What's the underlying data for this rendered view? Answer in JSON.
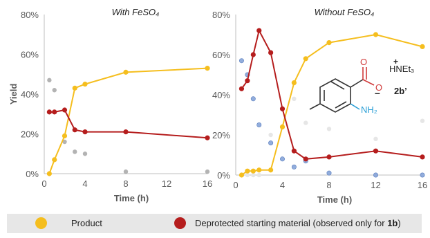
{
  "colors": {
    "product": "#f5be1e",
    "deprotected": "#b51d1d",
    "grey_scatter": "#a6a6a6",
    "blue_scatter": "#7f9fd6",
    "axis": "#bfbfbf",
    "amine": "#2a9fd6",
    "carbonyl": "#d03a3a"
  },
  "chart_data": [
    {
      "type": "line",
      "title": "With FeSO₄",
      "xlabel": "Time (h)",
      "ylabel": "Yield",
      "xlim": [
        0,
        16
      ],
      "ylim": [
        0,
        80
      ],
      "xticks": [
        "0",
        "4",
        "8",
        "12",
        "16"
      ],
      "yticks": [
        "0%",
        "20%",
        "40%",
        "60%",
        "80%"
      ],
      "series": [
        {
          "name": "Product",
          "x": [
            0.5,
            1,
            2,
            3,
            4,
            8,
            16
          ],
          "y": [
            0,
            7,
            19,
            43,
            45,
            51,
            53
          ]
        },
        {
          "name": "Deprotected starting material",
          "x": [
            0.5,
            1,
            2,
            3,
            4,
            8,
            16
          ],
          "y": [
            31,
            31,
            32,
            22,
            21,
            21,
            18
          ]
        }
      ],
      "scatter": [
        {
          "x": [
            0.5,
            1,
            2,
            3,
            4,
            8,
            16
          ],
          "y": [
            47,
            42,
            16,
            11,
            10,
            1,
            1
          ]
        }
      ]
    },
    {
      "type": "line",
      "title": "Without FeSO₄",
      "xlabel": "Time (h)",
      "ylabel": "",
      "xlim": [
        0,
        16
      ],
      "ylim": [
        0,
        80
      ],
      "xticks": [
        "0",
        "4",
        "8",
        "12",
        "16"
      ],
      "yticks": [
        "0%",
        "20%",
        "40%",
        "60%",
        "80%"
      ],
      "series": [
        {
          "name": "Product",
          "x": [
            0.5,
            1,
            1.5,
            2,
            3,
            4,
            5,
            6,
            8,
            12,
            16
          ],
          "y": [
            0,
            2,
            2,
            2.5,
            2.5,
            24,
            46,
            58,
            66,
            70,
            64
          ]
        },
        {
          "name": "Deprotected starting material",
          "x": [
            0.5,
            1,
            1.5,
            2,
            3,
            4,
            5,
            6,
            8,
            12,
            16
          ],
          "y": [
            43,
            47,
            60,
            72,
            61,
            33,
            12,
            8,
            9,
            12,
            9
          ]
        }
      ],
      "scatter": [
        {
          "x": [
            0.5,
            1,
            1.5,
            2,
            3,
            4,
            5,
            6,
            8,
            12,
            16
          ],
          "y": [
            57,
            50,
            38,
            25,
            16,
            8,
            4,
            7,
            1,
            0,
            0
          ]
        },
        {
          "x": [
            0.5,
            1,
            1.5,
            2,
            3,
            4,
            5,
            6,
            8,
            12,
            16
          ],
          "y": [
            0,
            0,
            0,
            0,
            20,
            24,
            38,
            26,
            23,
            18,
            27
          ]
        }
      ]
    }
  ],
  "structure": {
    "label": "2b’",
    "cation": "HNEt₃",
    "charge_plus": "+",
    "oxygen_top": "O",
    "oxygen_anion": "O",
    "charge_minus": "–",
    "amine": "NH₂"
  },
  "legend": {
    "product_label": "Product",
    "deprotected_label_prefix": "Deprotected starting material (observed only for ",
    "deprotected_label_bold": "1b",
    "deprotected_label_suffix": ")"
  }
}
